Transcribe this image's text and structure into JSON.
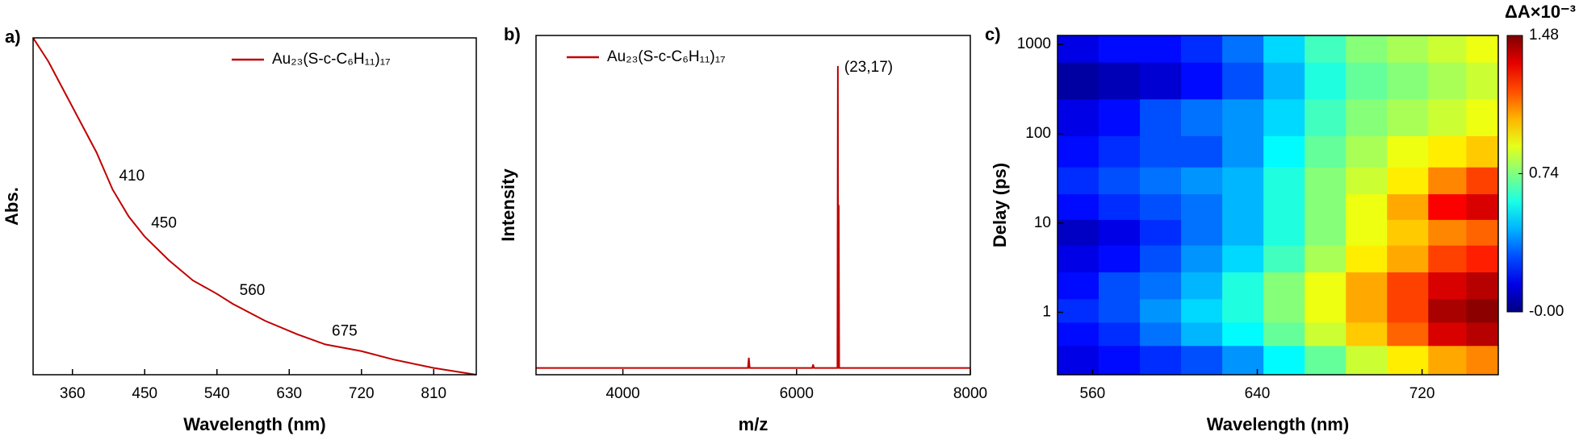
{
  "chart_data": [
    {
      "type": "line",
      "label": "a)",
      "xlabel": "Wavelength (nm)",
      "ylabel": "Abs.",
      "x": [
        311,
        330,
        350,
        370,
        390,
        410,
        430,
        450,
        480,
        510,
        540,
        560,
        600,
        640,
        675,
        720,
        760,
        810,
        863
      ],
      "series": [
        {
          "name": "Au₂₃(S-c-C₆H₁₁)₁₇",
          "color": "#c00000",
          "values": [
            1.0,
            0.93,
            0.84,
            0.75,
            0.66,
            0.55,
            0.47,
            0.41,
            0.34,
            0.28,
            0.24,
            0.21,
            0.16,
            0.12,
            0.09,
            0.07,
            0.045,
            0.02,
            0.0
          ]
        }
      ],
      "annotations": [
        410,
        450,
        560,
        675
      ],
      "xlim": [
        311,
        863
      ],
      "xticks": [
        360,
        450,
        540,
        630,
        720,
        810
      ],
      "ylim": [
        0,
        1.0
      ],
      "legend": "upper-right"
    },
    {
      "type": "line",
      "label": "b)",
      "xlabel": "m/z",
      "ylabel": "Intensity",
      "x": [
        3000,
        5440,
        5450,
        5460,
        6180,
        6190,
        6200,
        6460,
        6470,
        6475,
        6480,
        6485,
        6490,
        6500,
        8000
      ],
      "series": [
        {
          "name": "Au₂₃(S-c-C₆H₁₁)₁₇",
          "color": "#c00000",
          "values": [
            0.02,
            0.02,
            0.05,
            0.02,
            0.02,
            0.03,
            0.02,
            0.02,
            0.02,
            0.91,
            0.02,
            0.5,
            0.02,
            0.02,
            0.02
          ]
        }
      ],
      "annotation": "(23,17)",
      "xlim": [
        3000,
        8000
      ],
      "xticks": [
        4000,
        6000,
        8000
      ],
      "ylim": [
        0,
        1.0
      ],
      "legend": "upper-left"
    },
    {
      "type": "heatmap",
      "label": "c)",
      "xlabel": "Wavelength (nm)",
      "ylabel": "Delay (ps)",
      "x": [
        553,
        573,
        593,
        613,
        633,
        653,
        673,
        693,
        713,
        733,
        750
      ],
      "y": [
        0.3,
        0.6,
        1,
        2,
        4,
        8,
        15,
        30,
        60,
        150,
        400,
        1000
      ],
      "z": [
        [
          0.15,
          0.2,
          0.25,
          0.3,
          0.4,
          0.55,
          0.7,
          0.85,
          0.95,
          1.05,
          1.1
        ],
        [
          0.2,
          0.25,
          0.35,
          0.45,
          0.55,
          0.7,
          0.85,
          1.0,
          1.15,
          1.35,
          1.4
        ],
        [
          0.25,
          0.3,
          0.4,
          0.5,
          0.6,
          0.75,
          0.9,
          1.05,
          1.2,
          1.42,
          1.46
        ],
        [
          0.2,
          0.3,
          0.35,
          0.45,
          0.6,
          0.75,
          0.9,
          1.05,
          1.2,
          1.35,
          1.4
        ],
        [
          0.15,
          0.2,
          0.3,
          0.4,
          0.5,
          0.65,
          0.8,
          0.95,
          1.05,
          1.2,
          1.25
        ],
        [
          0.1,
          0.15,
          0.25,
          0.35,
          0.45,
          0.6,
          0.75,
          0.9,
          1.0,
          1.1,
          1.15
        ],
        [
          0.2,
          0.25,
          0.3,
          0.35,
          0.45,
          0.6,
          0.75,
          0.9,
          1.05,
          1.3,
          1.35
        ],
        [
          0.25,
          0.3,
          0.35,
          0.4,
          0.45,
          0.6,
          0.75,
          0.85,
          0.95,
          1.1,
          1.2
        ],
        [
          0.2,
          0.25,
          0.3,
          0.3,
          0.4,
          0.55,
          0.7,
          0.8,
          0.9,
          0.95,
          1.0
        ],
        [
          0.15,
          0.2,
          0.3,
          0.35,
          0.4,
          0.5,
          0.65,
          0.75,
          0.8,
          0.85,
          0.9
        ],
        [
          0.05,
          0.08,
          0.12,
          0.2,
          0.3,
          0.45,
          0.6,
          0.7,
          0.75,
          0.8,
          0.85
        ],
        [
          0.15,
          0.2,
          0.2,
          0.25,
          0.35,
          0.5,
          0.65,
          0.75,
          0.8,
          0.85,
          0.9
        ]
      ],
      "xlim": [
        543,
        757
      ],
      "xticks": [
        560,
        640,
        720
      ],
      "ylim": [
        0.2,
        1260
      ],
      "yticks": [
        1,
        10,
        100,
        1000
      ],
      "ylog": true,
      "colormap": "jet",
      "zlim": [
        0,
        1.48
      ],
      "colorbar_label": "ΔA×10⁻³",
      "colorbar_ticks": [
        {
          "value": 0,
          "label": "-0.00"
        },
        0.74,
        1.48
      ]
    }
  ]
}
